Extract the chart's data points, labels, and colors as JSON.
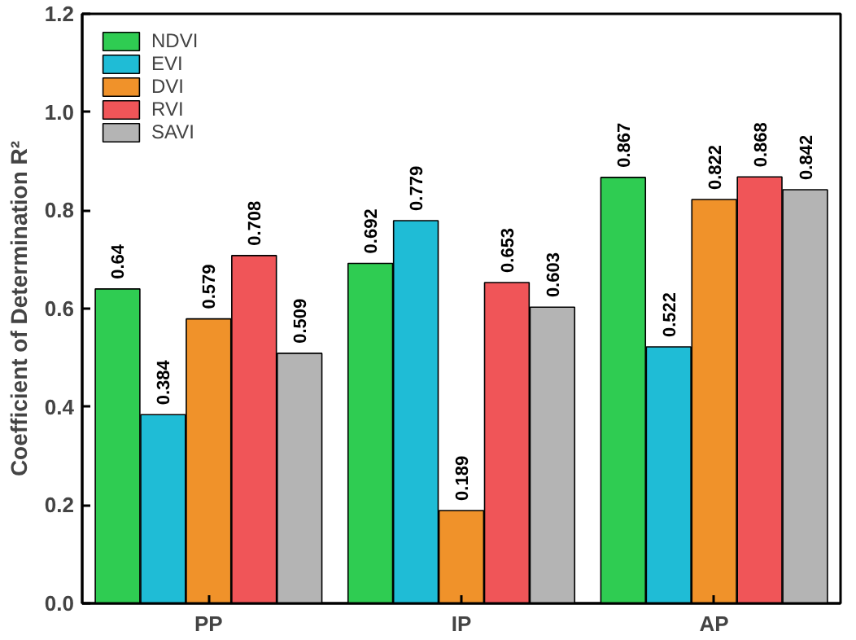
{
  "chart_data": {
    "type": "bar",
    "ylabel": "Coefficient of Determination R²",
    "categories": [
      "PP",
      "IP",
      "AP"
    ],
    "series": [
      {
        "name": "NDVI",
        "color": "#2fcc52",
        "values": [
          0.64,
          0.692,
          0.867
        ]
      },
      {
        "name": "EVI",
        "color": "#1fbcd6",
        "values": [
          0.384,
          0.779,
          0.522
        ]
      },
      {
        "name": "DVI",
        "color": "#f0922a",
        "values": [
          0.579,
          0.189,
          0.822
        ]
      },
      {
        "name": "RVI",
        "color": "#f05558",
        "values": [
          0.708,
          0.653,
          0.868
        ]
      },
      {
        "name": "SAVI",
        "color": "#b4b4b4",
        "values": [
          0.509,
          0.603,
          0.842
        ]
      }
    ],
    "ylim": [
      0,
      1.2
    ],
    "yticks": [
      {
        "value": 0,
        "label": "0.0"
      },
      {
        "value": 0.2,
        "label": "0.2"
      },
      {
        "value": 0.4,
        "label": "0.4"
      },
      {
        "value": 0.6,
        "label": "0.6"
      },
      {
        "value": 0.8,
        "label": "0.8"
      },
      {
        "value": 1.0,
        "label": "1.0"
      },
      {
        "value": 1.2,
        "label": "1.2"
      }
    ],
    "data_labels": true,
    "legend": "top left",
    "grid": false
  }
}
